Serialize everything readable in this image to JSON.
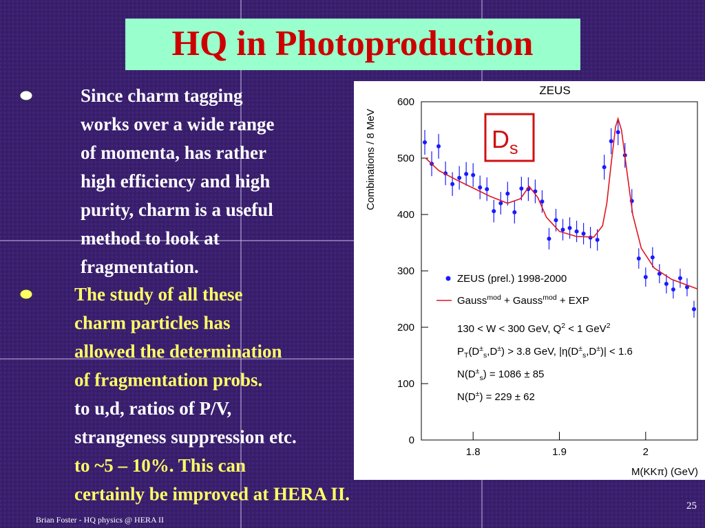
{
  "title": "HQ in Photoproduction",
  "bullets": [
    {
      "lines": [
        {
          "text": "Since charm tagging",
          "color": "#ffffff"
        },
        {
          "text": "works over a wide range",
          "color": "#ffffff"
        },
        {
          "text": "of momenta, has rather",
          "color": "#ffffff"
        },
        {
          "text": "high efficiency and high",
          "color": "#ffffff"
        },
        {
          "text": "purity, charm is a useful",
          "color": "#ffffff"
        },
        {
          "text": "method to look at",
          "color": "#ffffff"
        },
        {
          "text": "fragmentation.",
          "color": "#ffffff"
        }
      ],
      "marker_color": "#ffffff"
    },
    {
      "lines": [
        {
          "text": "The study of all these",
          "color": "#ffff66"
        },
        {
          "text": "charm particles has",
          "color": "#ffff66"
        },
        {
          "text": "allowed the determination",
          "color": "#ffff66"
        },
        {
          "text": "of fragmentation probs.",
          "color": "#ffff66"
        },
        {
          "text": "to u,d, ratios of P/V,",
          "color": "#ffffff"
        },
        {
          "text": "strangeness suppression etc.",
          "color": "#ffffff"
        },
        {
          "text": "to ~5 – 10%. This can",
          "color": "#ffff66"
        },
        {
          "text": "certainly be improved at HERA II.",
          "color": "#ffff66"
        }
      ],
      "marker_color": "#ffff66"
    }
  ],
  "footer": "Brian Foster - HQ physics @ HERA II",
  "page_number": "25",
  "chart_data": {
    "type": "scatter",
    "title": "ZEUS",
    "x_label": "M(KKπ)  (GeV)",
    "y_label": "Combinations / 8 MeV",
    "xlim": [
      1.74,
      2.06
    ],
    "xticks": [
      1.8,
      1.9,
      2
    ],
    "ylim": [
      0,
      600
    ],
    "yticks": [
      0,
      100,
      200,
      300,
      400,
      500,
      600
    ],
    "series": [
      {
        "name": "ZEUS (prel.) 1998-2000",
        "color": "#1a1aff",
        "x": [
          1.744,
          1.752,
          1.76,
          1.768,
          1.776,
          1.784,
          1.792,
          1.8,
          1.808,
          1.816,
          1.824,
          1.832,
          1.84,
          1.848,
          1.856,
          1.864,
          1.872,
          1.88,
          1.888,
          1.896,
          1.904,
          1.912,
          1.92,
          1.928,
          1.936,
          1.944,
          1.952,
          1.96,
          1.968,
          1.976,
          1.984,
          1.992,
          2.0,
          2.008,
          2.016,
          2.024,
          2.032,
          2.04,
          2.048,
          2.056
        ],
        "values": [
          528,
          490,
          521,
          473,
          454,
          465,
          472,
          470,
          448,
          445,
          406,
          420,
          437,
          404,
          446,
          445,
          441,
          423,
          357,
          390,
          373,
          376,
          370,
          366,
          359,
          355,
          484,
          530,
          546,
          505,
          424,
          322,
          289,
          324,
          295,
          277,
          267,
          287,
          271,
          232
        ],
        "errors": [
          22,
          22,
          22,
          21,
          21,
          21,
          21,
          21,
          21,
          21,
          20,
          20,
          21,
          20,
          21,
          21,
          21,
          20,
          19,
          20,
          19,
          19,
          19,
          19,
          19,
          19,
          22,
          23,
          23,
          22,
          21,
          18,
          17,
          18,
          17,
          17,
          16,
          17,
          16,
          15
        ]
      },
      {
        "name": [
          "Gauss",
          {
            "text": "mod",
            "shift": "sup"
          },
          " + Gauss",
          {
            "text": "mod",
            "shift": "sup"
          },
          " + EXP"
        ],
        "color": "#e0141e",
        "x": [
          1.745,
          1.76,
          1.78,
          1.8,
          1.82,
          1.84,
          1.855,
          1.865,
          1.875,
          1.885,
          1.9,
          1.92,
          1.94,
          1.95,
          1.955,
          1.96,
          1.965,
          1.968,
          1.972,
          1.978,
          1.985,
          1.995,
          2.01,
          2.03,
          2.06
        ],
        "values": [
          500,
          478,
          462,
          447,
          432,
          420,
          428,
          450,
          430,
          395,
          370,
          361,
          360,
          380,
          420,
          490,
          555,
          570,
          550,
          480,
          400,
          340,
          305,
          285,
          268
        ]
      }
    ],
    "annotations": [
      [
        "130 < W < 300 GeV, Q",
        {
          "text": "2",
          "shift": "sup"
        },
        " < 1 GeV",
        {
          "text": "2",
          "shift": "sup"
        }
      ],
      [
        "P",
        {
          "text": "T",
          "shift": "sub"
        },
        "(D",
        {
          "text": "±",
          "shift": "sup"
        },
        {
          "text": "s",
          "shift": "sub"
        },
        ",D",
        {
          "text": "±",
          "shift": "sup"
        },
        ") > 3.8 GeV,  |η(D",
        {
          "text": "±",
          "shift": "sup"
        },
        {
          "text": "s",
          "shift": "sub"
        },
        ",D",
        {
          "text": "±",
          "shift": "sup"
        },
        ")| < 1.6"
      ],
      [
        "N(D",
        {
          "text": "±",
          "shift": "sup"
        },
        {
          "text": "s",
          "shift": "sub"
        },
        ") = 1086 ± 85"
      ],
      [
        "N(D",
        {
          "text": "±",
          "shift": "sup"
        },
        ") = 229 ± 62"
      ]
    ],
    "peak_label": [
      "D",
      {
        "text": "s",
        "shift": "sub"
      }
    ]
  }
}
